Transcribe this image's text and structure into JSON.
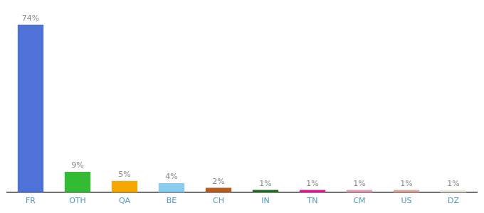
{
  "chart_data": {
    "type": "bar",
    "categories": [
      "FR",
      "OTH",
      "QA",
      "BE",
      "CH",
      "IN",
      "TN",
      "CM",
      "US",
      "DZ"
    ],
    "values": [
      74,
      9,
      5,
      4,
      2,
      1,
      1,
      1,
      1,
      1
    ],
    "value_labels": [
      "74%",
      "9%",
      "5%",
      "4%",
      "2%",
      "1%",
      "1%",
      "1%",
      "1%",
      "1%"
    ],
    "colors": [
      "#4e72d8",
      "#33bb33",
      "#f5a800",
      "#88ccee",
      "#b85c20",
      "#1a6e1a",
      "#ee1199",
      "#f099bb",
      "#e8a898",
      "#eeeedd"
    ],
    "ylim": [
      0,
      78
    ],
    "data_labels": true,
    "tick_labels": "x",
    "grid": false
  }
}
